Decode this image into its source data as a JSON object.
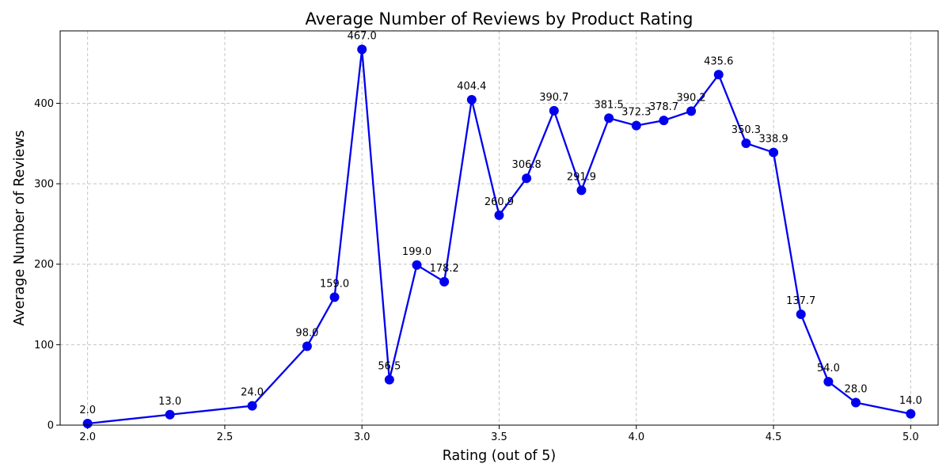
{
  "chart_data": {
    "type": "line",
    "title": "Average Number of Reviews by Product Rating",
    "xlabel": "Rating (out of 5)",
    "ylabel": "Average Number of Reviews",
    "xlim": [
      1.9,
      5.1
    ],
    "ylim": [
      0,
      490
    ],
    "xticks": [
      2.0,
      2.5,
      3.0,
      3.5,
      4.0,
      4.5,
      5.0
    ],
    "xtick_labels": [
      "2.0",
      "2.5",
      "3.0",
      "3.5",
      "4.0",
      "4.5",
      "5.0"
    ],
    "yticks": [
      0,
      100,
      200,
      300,
      400
    ],
    "ytick_labels": [
      "0",
      "100",
      "200",
      "300",
      "400"
    ],
    "grid": true,
    "color": "#0000ee",
    "series": [
      {
        "x": [
          2.0,
          2.3,
          2.6,
          2.8,
          2.9,
          3.0,
          3.1,
          3.2,
          3.3,
          3.4,
          3.5,
          3.6,
          3.7,
          3.8,
          3.9,
          4.0,
          4.1,
          4.2,
          4.3,
          4.4,
          4.5,
          4.6,
          4.7,
          4.8,
          5.0
        ],
        "values": [
          2.0,
          13.0,
          24.0,
          98.0,
          159.0,
          467.0,
          56.5,
          199.0,
          178.2,
          404.4,
          260.9,
          306.8,
          390.7,
          291.9,
          381.5,
          372.3,
          378.7,
          390.2,
          435.6,
          350.3,
          338.9,
          137.7,
          54.0,
          28.0,
          14.0
        ],
        "labels": [
          "2.0",
          "13.0",
          "24.0",
          "98.0",
          "159.0",
          "467.0",
          "56.5",
          "199.0",
          "178.2",
          "404.4",
          "260.9",
          "306.8",
          "390.7",
          "291.9",
          "381.5",
          "372.3",
          "378.7",
          "390.2",
          "435.6",
          "350.3",
          "338.9",
          "137.7",
          "54.0",
          "28.0",
          "14.0"
        ]
      }
    ]
  }
}
